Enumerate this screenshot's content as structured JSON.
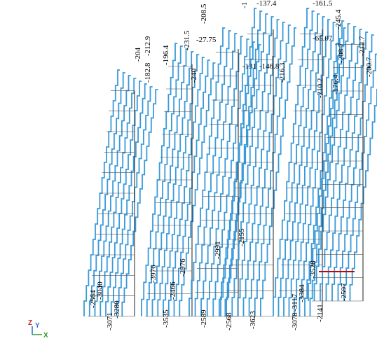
{
  "labels": [
    "-204",
    "-212.9",
    "-196.4",
    "-182.8",
    "-231.5",
    "-208.5",
    "-27.75",
    "-240",
    "-1",
    "-137.4",
    "-131",
    "-146.8",
    "-216.3",
    "-161.5",
    "-245.4",
    "-65.07",
    "-208.7",
    "-212.7",
    "-200.7",
    "-210.2",
    "-176.4",
    "-2564",
    "-3040",
    "-3071",
    "-3280",
    "-3976",
    "-3535",
    "-2976",
    "-2466",
    "-2589",
    "-2991",
    "-2568",
    "-2155",
    "-3623",
    "-3117",
    "-3078",
    "-3384",
    "-3528",
    "-2141",
    "-2597"
  ],
  "axes": {
    "z": "Z",
    "y": "Y",
    "x": "X"
  }
}
